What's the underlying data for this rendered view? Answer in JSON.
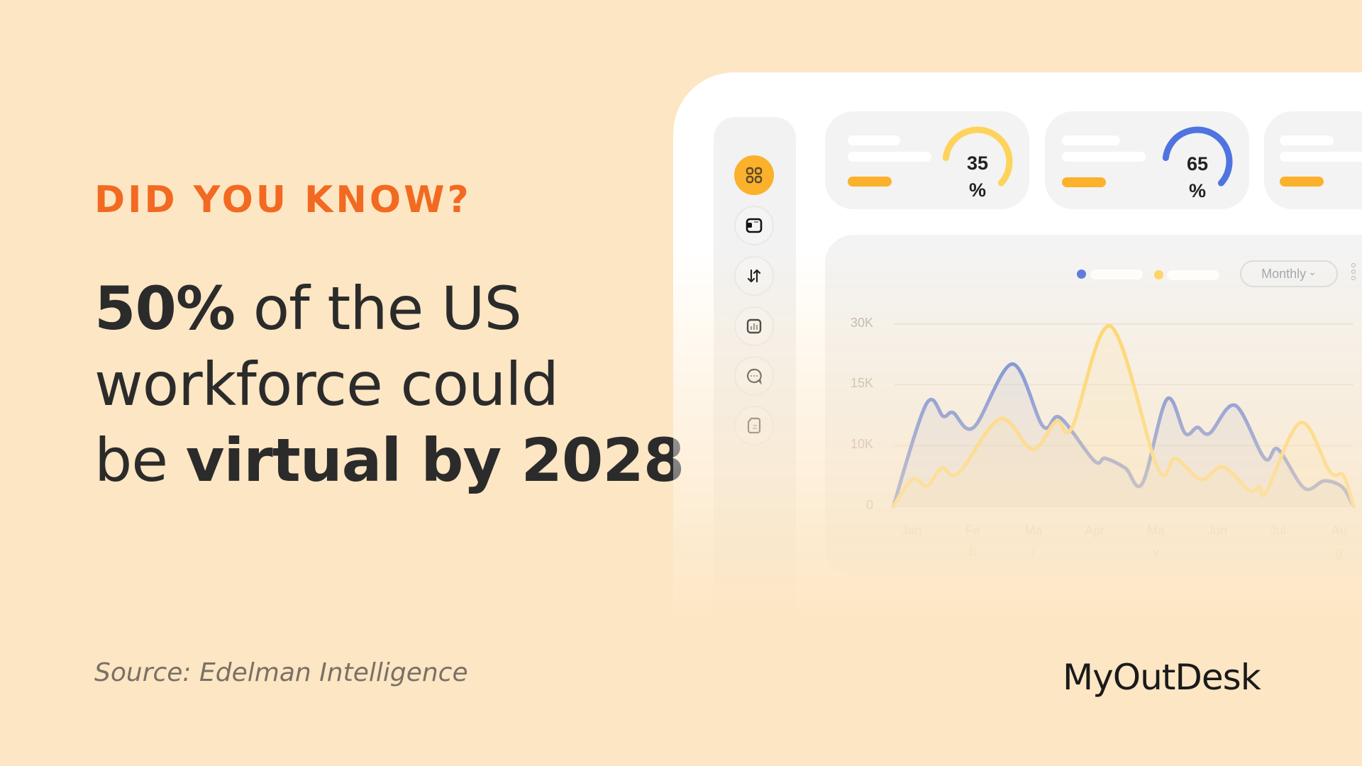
{
  "kicker": "DID YOU KNOW?",
  "headline": {
    "l1_bold": "50%",
    "l1_rest": " of the US",
    "l2": "workforce could",
    "l3_pre": "be ",
    "l3_bold": "virtual by 2028"
  },
  "source": "Source: Edelman Intelligence",
  "brand": "MyOutDesk",
  "colors": {
    "accent": "#f26a21",
    "blue": "#4f74e0",
    "yellow": "#fdd35c",
    "orange": "#fbb12b",
    "background": "#fde6c3"
  },
  "sidebar": {
    "items": [
      {
        "icon": "dashboard-grid-icon",
        "active": true
      },
      {
        "icon": "wallet-icon"
      },
      {
        "icon": "transfer-arrows-icon"
      },
      {
        "icon": "bar-chart-icon"
      },
      {
        "icon": "chat-bubble-icon"
      },
      {
        "icon": "document-icon"
      }
    ]
  },
  "cards": [
    {
      "value": "35",
      "unit": "%",
      "progress": 0.35,
      "color": "#fdd35c"
    },
    {
      "value": "65",
      "unit": "%",
      "progress": 0.65,
      "color": "#4f74e0"
    }
  ],
  "panel": {
    "period": "Monthly",
    "period_chevron": "⌄"
  },
  "chart_data": {
    "type": "line",
    "categories": [
      "Jan",
      "Feb",
      "Mar",
      "Apr",
      "May",
      "Jun",
      "Jul",
      "Aug"
    ],
    "yticks": [
      "30K",
      "15K",
      "10K",
      "0"
    ],
    "ytick_values": [
      30000,
      15000,
      10000,
      0
    ],
    "grid": true,
    "legend": "top-right",
    "series": [
      {
        "color": "#4f74e0",
        "points": [
          [
            -0.3,
            0
          ],
          [
            0.24,
            13400
          ],
          [
            0.52,
            12400
          ],
          [
            0.68,
            12700
          ],
          [
            1.02,
            11500
          ],
          [
            1.65,
            20100
          ],
          [
            2.15,
            11600
          ],
          [
            2.43,
            12300
          ],
          [
            2.99,
            7500
          ],
          [
            3.17,
            7900
          ],
          [
            3.5,
            6300
          ],
          [
            3.78,
            3800
          ],
          [
            4.18,
            13800
          ],
          [
            4.48,
            11000
          ],
          [
            4.68,
            11500
          ],
          [
            4.88,
            11000
          ],
          [
            5.3,
            13300
          ],
          [
            5.78,
            7900
          ],
          [
            6.0,
            9400
          ],
          [
            6.43,
            3000
          ],
          [
            6.76,
            4200
          ],
          [
            7.05,
            3200
          ],
          [
            7.21,
            500
          ]
        ]
      },
      {
        "color": "#fdd35c",
        "points": [
          [
            -0.3,
            0
          ],
          [
            0.01,
            4400
          ],
          [
            0.26,
            3400
          ],
          [
            0.49,
            6300
          ],
          [
            0.77,
            5500
          ],
          [
            1.45,
            12200
          ],
          [
            1.98,
            9400
          ],
          [
            2.37,
            12000
          ],
          [
            2.63,
            11500
          ],
          [
            3.26,
            29400
          ],
          [
            4.03,
            6300
          ],
          [
            4.32,
            7900
          ],
          [
            4.74,
            4400
          ],
          [
            5.1,
            6500
          ],
          [
            5.53,
            2600
          ],
          [
            5.7,
            3200
          ],
          [
            5.81,
            2400
          ],
          [
            6.37,
            11900
          ],
          [
            6.85,
            5700
          ],
          [
            7.07,
            5100
          ],
          [
            7.24,
            0
          ]
        ]
      }
    ]
  }
}
